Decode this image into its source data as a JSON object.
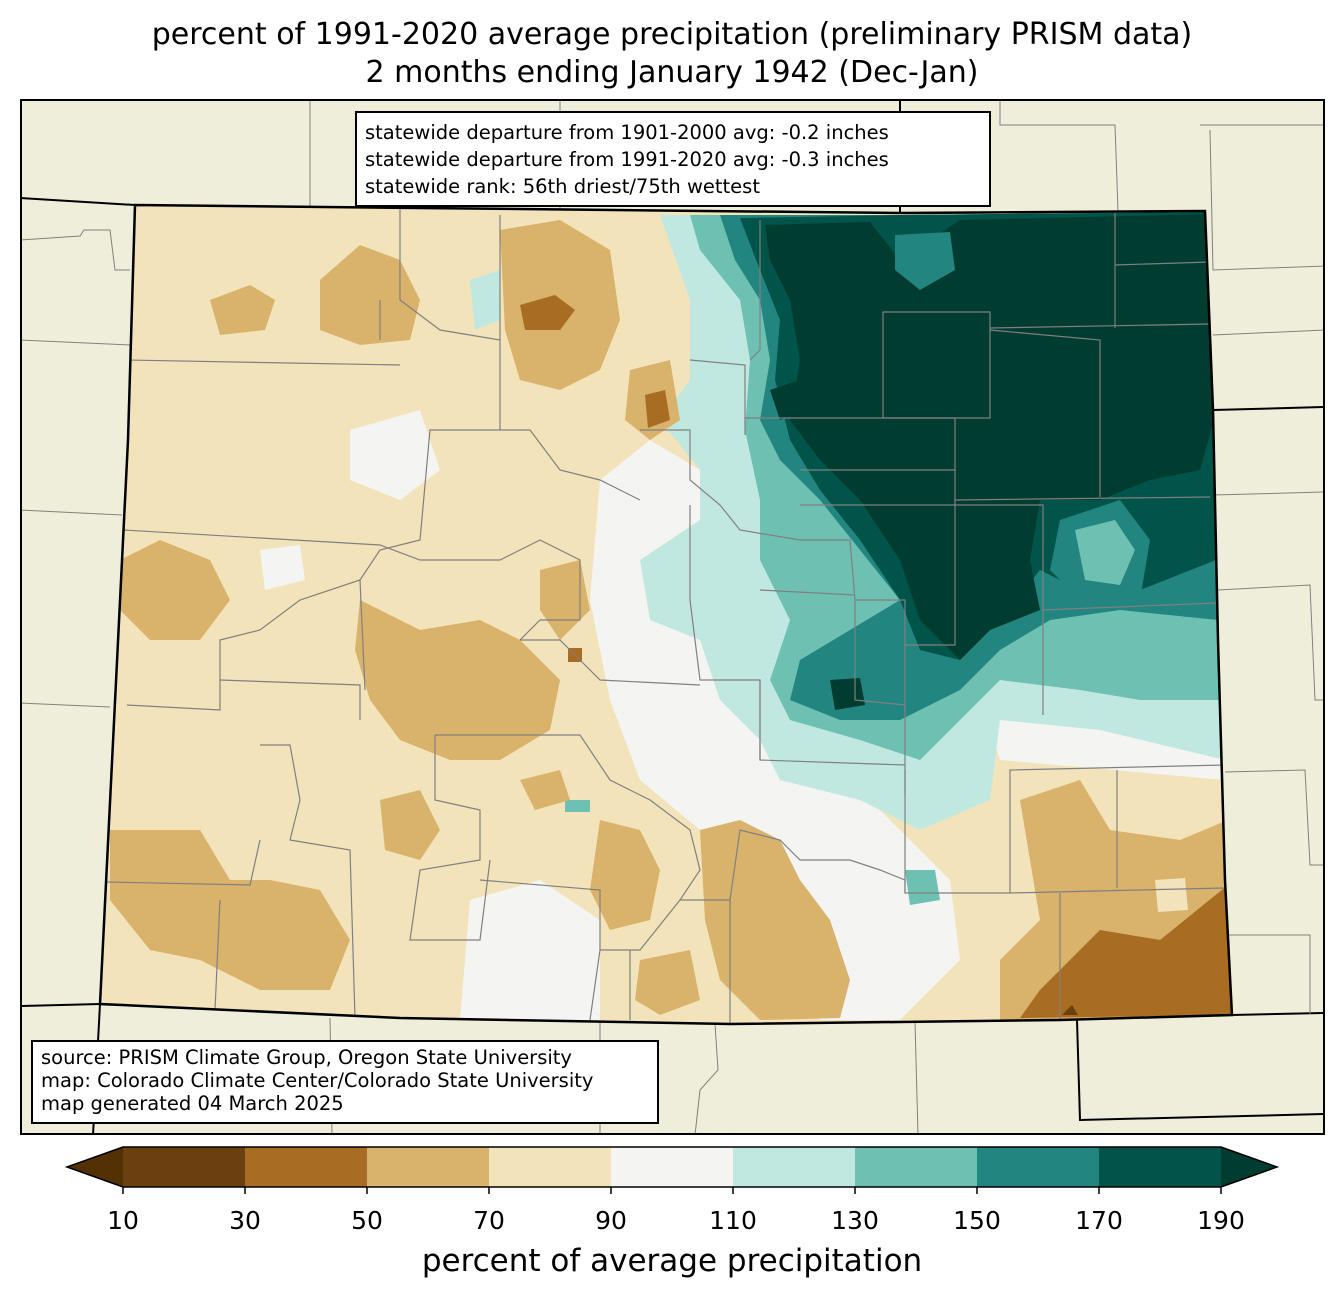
{
  "title": {
    "line1": "percent of 1991-2020 average precipitation (preliminary PRISM data)",
    "line2": "2 months ending January 1942 (Dec-Jan)"
  },
  "stats": {
    "line1": "statewide departure from 1901-2000 avg: -0.2 inches",
    "line2": "statewide departure from 1991-2020 avg: -0.3 inches",
    "line3": "statewide rank: 56th driest/75th wettest"
  },
  "source": {
    "line1": "source: PRISM Climate Group, Oregon State University",
    "line2": "map: Colorado Climate Center/Colorado State University",
    "line3": "map generated 04 March 2025"
  },
  "colorbar": {
    "label": "percent of average precipitation",
    "ticks": [
      "10",
      "30",
      "50",
      "70",
      "90",
      "110",
      "130",
      "150",
      "170",
      "190"
    ],
    "colors": [
      "#6c3f0f",
      "#a86c22",
      "#d9b26c",
      "#f3e3ba",
      "#f4f4f2",
      "#c0e8e1",
      "#6dc0b2",
      "#238580",
      "#005449"
    ],
    "under_color": "#543005",
    "over_color": "#003c30"
  },
  "map": {
    "background_color": "#efeedb",
    "border_color": "#000000",
    "county_line_color": "#808080"
  }
}
